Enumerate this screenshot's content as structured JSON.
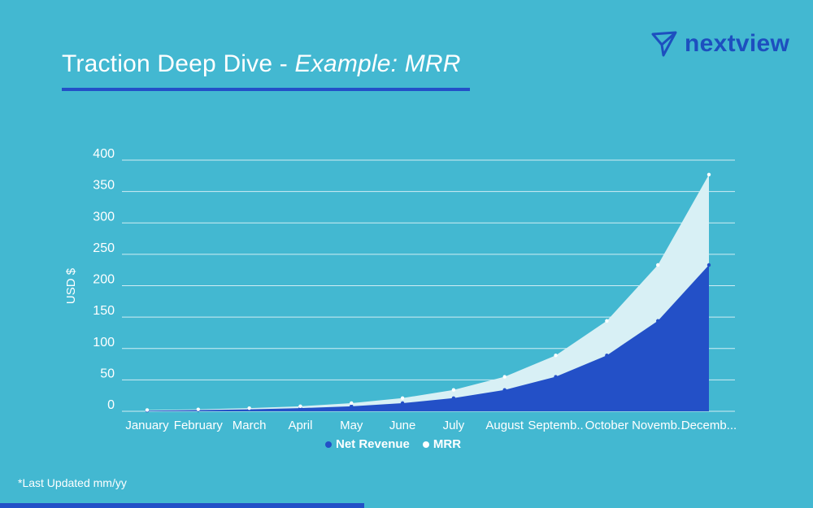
{
  "header": {
    "title_main": "Traction Deep Dive - ",
    "title_italic": "Example: MRR",
    "logo_text": "nextview",
    "logo_icon": "paper-plane-icon"
  },
  "footer": {
    "note": "*Last Updated mm/yy"
  },
  "colors": {
    "background": "#43b8d1",
    "net_revenue": "#2350c7",
    "mrr": "#d8f0f5",
    "accent": "#2350c7"
  },
  "chart_data": {
    "type": "area",
    "categories": [
      "January",
      "February",
      "March",
      "April",
      "May",
      "June",
      "July",
      "August",
      "Septemb..",
      "October",
      "Novemb..",
      "Decemb..."
    ],
    "ylabel": "USD $",
    "ylim": [
      0,
      400
    ],
    "yticks": [
      0,
      50,
      100,
      150,
      200,
      250,
      300,
      350,
      400
    ],
    "grid": true,
    "legend_position": "bottom",
    "series": [
      {
        "name": "Net Revenue",
        "values": [
          1,
          2,
          3,
          5,
          8,
          13,
          21,
          34,
          55,
          89,
          144,
          233
        ]
      },
      {
        "name": "MRR",
        "values": [
          2,
          3,
          5,
          8,
          13,
          21,
          34,
          55,
          89,
          144,
          233,
          377
        ]
      }
    ]
  }
}
